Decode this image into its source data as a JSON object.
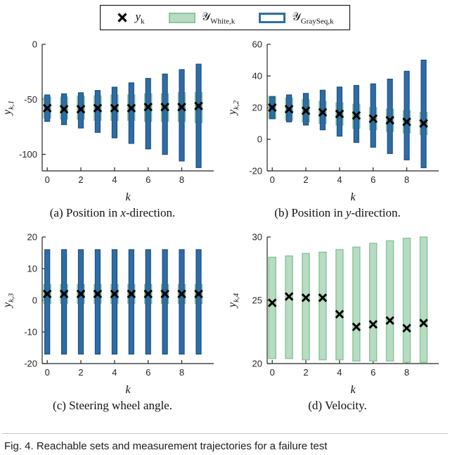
{
  "legend": {
    "items": [
      {
        "main": "y",
        "sub": "k"
      },
      {
        "main": "𝒴",
        "sub": "White,k"
      },
      {
        "main": "𝒴",
        "sub": "GraySeq,k"
      }
    ]
  },
  "captions": {
    "a": {
      "pre": "(a) Position in ",
      "var": "x",
      "post": "-direction."
    },
    "b": {
      "pre": "(b) Position in ",
      "var": "y",
      "post": "-direction."
    },
    "c": {
      "pre": "(c) Steering wheel angle.",
      "var": "",
      "post": ""
    },
    "d": {
      "pre": "(d) Velocity.",
      "var": "",
      "post": ""
    }
  },
  "figure_caption": "Fig. 4.  Reachable sets and measurement trajectories for a failure test",
  "colors": {
    "white_fill": "#b7dcc2",
    "white_stroke": "#8bc79e",
    "gray_fill": "#2e6da4",
    "gray_stroke": "#1d4f85",
    "marker": "#000000",
    "axis": "#262626"
  },
  "chart_data": [
    {
      "id": "a",
      "type": "bar",
      "title": "(a) Position in x-direction.",
      "ylabel_main": "y",
      "ylabel_sub": "k,1",
      "xlabel": "k",
      "x": [
        0,
        1,
        2,
        3,
        4,
        5,
        6,
        7,
        8,
        9
      ],
      "xlim": [
        -0.3,
        9.9
      ],
      "ylim": [
        -115,
        0
      ],
      "xticks": [
        0,
        2,
        4,
        6,
        8
      ],
      "yticks": [
        0,
        -50,
        -100
      ],
      "markers": [
        -58,
        -59,
        -59,
        -58,
        -58,
        -58,
        -57,
        -57,
        -57,
        -56
      ],
      "white_bars": [
        [
          -67,
          -48
        ],
        [
          -68,
          -48
        ],
        [
          -68,
          -47
        ],
        [
          -69,
          -47
        ],
        [
          -69,
          -46
        ],
        [
          -69,
          -46
        ],
        [
          -70,
          -45
        ],
        [
          -70,
          -45
        ],
        [
          -70,
          -44
        ],
        [
          -71,
          -44
        ]
      ],
      "grayseq_bars": [
        [
          -70,
          -46
        ],
        [
          -73,
          -45
        ],
        [
          -76,
          -44
        ],
        [
          -80,
          -42
        ],
        [
          -85,
          -39
        ],
        [
          -90,
          -35
        ],
        [
          -95,
          -31
        ],
        [
          -100,
          -27
        ],
        [
          -106,
          -23
        ],
        [
          -112,
          -18
        ]
      ]
    },
    {
      "id": "b",
      "type": "bar",
      "title": "(b) Position in y-direction.",
      "ylabel_main": "y",
      "ylabel_sub": "k,2",
      "xlabel": "k",
      "x": [
        0,
        1,
        2,
        3,
        4,
        5,
        6,
        7,
        8,
        9
      ],
      "xlim": [
        -0.3,
        9.9
      ],
      "ylim": [
        -20,
        60
      ],
      "xticks": [
        0,
        2,
        4,
        6,
        8
      ],
      "yticks": [
        -20,
        0,
        20,
        40,
        60
      ],
      "markers": [
        20,
        19,
        18,
        17,
        16,
        15,
        13,
        12,
        11,
        10
      ],
      "white_bars": [
        [
          13,
          27
        ],
        [
          12,
          26
        ],
        [
          11,
          25
        ],
        [
          10,
          24
        ],
        [
          9,
          23
        ],
        [
          7,
          22
        ],
        [
          6,
          20
        ],
        [
          5,
          19
        ],
        [
          4,
          18
        ],
        [
          3,
          17
        ]
      ],
      "grayseq_bars": [
        [
          13,
          27
        ],
        [
          11,
          28
        ],
        [
          9,
          29
        ],
        [
          6,
          31
        ],
        [
          2,
          33
        ],
        [
          -2,
          34
        ],
        [
          -5,
          35
        ],
        [
          -9,
          38
        ],
        [
          -13,
          43
        ],
        [
          -18,
          50
        ]
      ]
    },
    {
      "id": "c",
      "type": "bar",
      "title": "(c) Steering wheel angle.",
      "ylabel_main": "y",
      "ylabel_sub": "k,3",
      "xlabel": "k",
      "x": [
        0,
        1,
        2,
        3,
        4,
        5,
        6,
        7,
        8,
        9
      ],
      "xlim": [
        -0.3,
        9.9
      ],
      "ylim": [
        -20,
        20
      ],
      "xticks": [
        0,
        2,
        4,
        6,
        8
      ],
      "yticks": [
        -20,
        -10,
        0,
        10,
        20
      ],
      "markers": [
        2,
        2,
        2,
        2,
        2,
        2,
        2,
        2,
        2,
        2
      ],
      "white_bars": [
        [
          -1,
          5
        ],
        [
          -1,
          5
        ],
        [
          -1,
          5
        ],
        [
          -1,
          5
        ],
        [
          -1,
          5
        ],
        [
          -1,
          5
        ],
        [
          -1,
          5
        ],
        [
          -1,
          5
        ],
        [
          -1,
          5
        ],
        [
          -1,
          5
        ]
      ],
      "grayseq_bars": [
        [
          -17,
          16
        ],
        [
          -17,
          16
        ],
        [
          -17,
          16
        ],
        [
          -17,
          16
        ],
        [
          -17,
          16
        ],
        [
          -17,
          16
        ],
        [
          -17,
          16
        ],
        [
          -17,
          16
        ],
        [
          -17,
          16
        ],
        [
          -17,
          16
        ]
      ]
    },
    {
      "id": "d",
      "type": "bar",
      "title": "(d) Velocity.",
      "ylabel_main": "y",
      "ylabel_sub": "k,4",
      "xlabel": "k",
      "x": [
        0,
        1,
        2,
        3,
        4,
        5,
        6,
        7,
        8,
        9
      ],
      "xlim": [
        -0.3,
        9.9
      ],
      "ylim": [
        20,
        30
      ],
      "xticks": [
        0,
        2,
        4,
        6,
        8
      ],
      "yticks": [
        20,
        25,
        30
      ],
      "markers": [
        24.8,
        25.3,
        25.2,
        25.2,
        23.9,
        22.9,
        23.1,
        23.4,
        22.8,
        23.2
      ],
      "white_bars": [
        [
          20.4,
          28.4
        ],
        [
          20.4,
          28.5
        ],
        [
          20.3,
          28.7
        ],
        [
          20.3,
          28.8
        ],
        [
          20.3,
          29.0
        ],
        [
          20.2,
          29.2
        ],
        [
          20.2,
          29.5
        ],
        [
          20.2,
          29.7
        ],
        [
          20.1,
          29.9
        ],
        [
          20.1,
          30.0
        ]
      ],
      "grayseq_bars": []
    }
  ]
}
